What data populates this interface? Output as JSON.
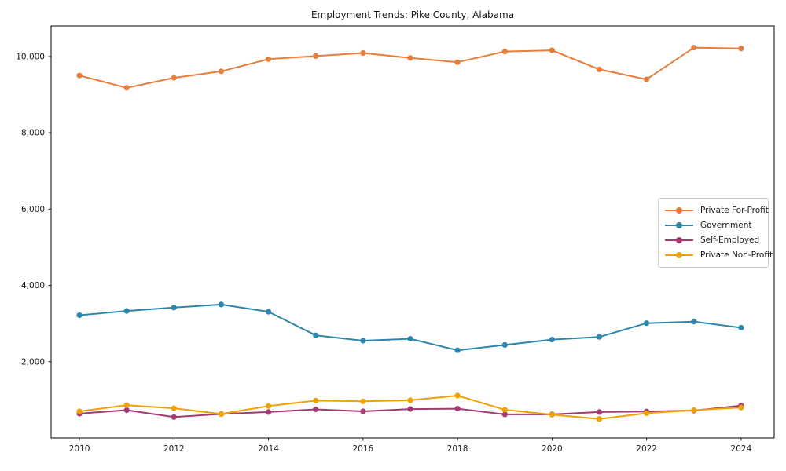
{
  "page": {
    "background": "#ffffff"
  },
  "chart_data": {
    "type": "line",
    "title": "Employment Trends: Pike County, Alabama",
    "xlabel": "",
    "ylabel": "",
    "x": [
      2010,
      2011,
      2012,
      2013,
      2014,
      2015,
      2016,
      2017,
      2018,
      2019,
      2020,
      2021,
      2022,
      2023,
      2024
    ],
    "series": [
      {
        "name": "Private For-Profit",
        "color": "#E87D3D",
        "values": [
          9500,
          9180,
          9440,
          9610,
          9930,
          10010,
          10090,
          9960,
          9850,
          10130,
          10160,
          9660,
          9400,
          10230,
          10210
        ]
      },
      {
        "name": "Government",
        "color": "#2E86AB",
        "values": [
          3220,
          3330,
          3420,
          3500,
          3310,
          2690,
          2550,
          2600,
          2300,
          2440,
          2580,
          2650,
          3010,
          3050,
          2890
        ]
      },
      {
        "name": "Self-Employed",
        "color": "#A23B72",
        "values": [
          640,
          730,
          550,
          630,
          680,
          750,
          700,
          760,
          770,
          620,
          620,
          680,
          695,
          720,
          850
        ]
      },
      {
        "name": "Private Non-Profit",
        "color": "#F0A202",
        "values": [
          700,
          860,
          780,
          630,
          840,
          980,
          960,
          990,
          1110,
          740,
          610,
          500,
          650,
          730,
          800
        ]
      }
    ],
    "xticks": {
      "values": [
        2010,
        2012,
        2014,
        2016,
        2018,
        2020,
        2022,
        2024
      ],
      "labels": [
        "2010",
        "2012",
        "2014",
        "2016",
        "2018",
        "2020",
        "2022",
        "2024"
      ]
    },
    "yticks": {
      "values": [
        2000,
        4000,
        6000,
        8000,
        10000
      ],
      "labels": [
        "2,000",
        "4,000",
        "6,000",
        "8,000",
        "10,000"
      ]
    },
    "xlim": [
      2009.4,
      2024.7
    ],
    "ylim": [
      0,
      10800
    ],
    "grid": false,
    "legend_position": "center-right",
    "axis_color": "#000000",
    "text_color": "#1a1a1a"
  }
}
